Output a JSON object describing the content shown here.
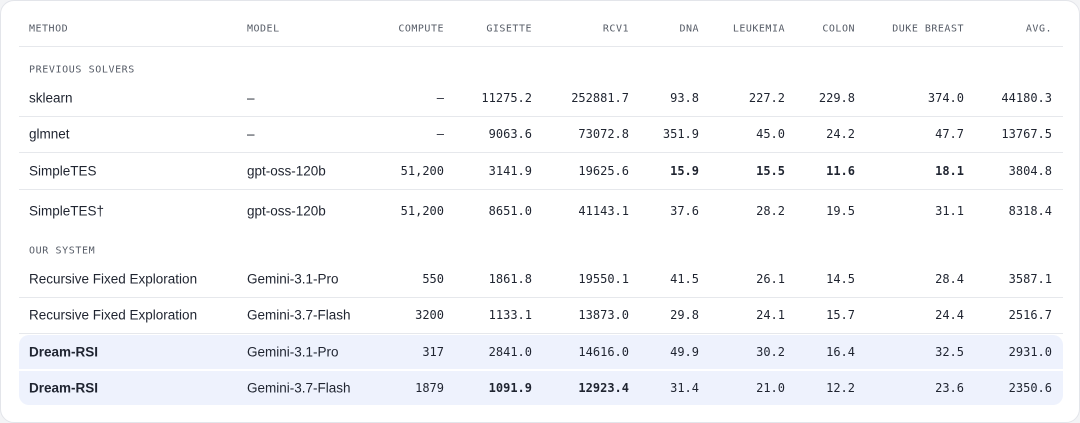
{
  "table": {
    "header": [
      "METHOD",
      "MODEL",
      "COMPUTE",
      "GISETTE",
      "RCV1",
      "DNA",
      "LEUKEMIA",
      "COLON",
      "DUKE BREAST",
      "AVG."
    ],
    "sections": [
      {
        "label": "PREVIOUS SOLVERS",
        "rows": [
          [
            "sklearn",
            "–",
            "–",
            "11275.2",
            "252881.7",
            "93.8",
            "227.2",
            "229.8",
            "374.0",
            "44180.3"
          ],
          [
            "glmnet",
            "–",
            "–",
            "9063.6",
            "73072.8",
            "351.9",
            "45.0",
            "24.2",
            "47.7",
            "13767.5"
          ],
          [
            "SimpleTES",
            "gpt-oss-120b",
            "51,200",
            "3141.9",
            "19625.6",
            "15.9",
            "15.5",
            "11.6",
            "18.1",
            "3804.8"
          ],
          [
            "SimpleTES†",
            "gpt-oss-120b",
            "51,200",
            "8651.0",
            "41143.1",
            "37.6",
            "28.2",
            "19.5",
            "31.1",
            "8318.4"
          ]
        ]
      },
      {
        "label": "OUR SYSTEM",
        "rows": [
          [
            "Recursive Fixed Exploration",
            "Gemini-3.1-Pro",
            "550",
            "1861.8",
            "19550.1",
            "41.5",
            "26.1",
            "14.5",
            "28.4",
            "3587.1"
          ],
          [
            "Recursive Fixed Exploration",
            "Gemini-3.7-Flash",
            "3200",
            "1133.1",
            "13873.0",
            "29.8",
            "24.1",
            "15.7",
            "24.4",
            "2516.7"
          ],
          [
            "Dream-RSI",
            "Gemini-3.1-Pro",
            "317",
            "2841.0",
            "14616.0",
            "49.9",
            "30.2",
            "16.4",
            "32.5",
            "2931.0"
          ],
          [
            "Dream-RSI",
            "Gemini-3.7-Flash",
            "1879",
            "1091.9",
            "12923.4",
            "31.4",
            "21.0",
            "12.2",
            "23.6",
            "2350.6"
          ]
        ]
      }
    ]
  }
}
